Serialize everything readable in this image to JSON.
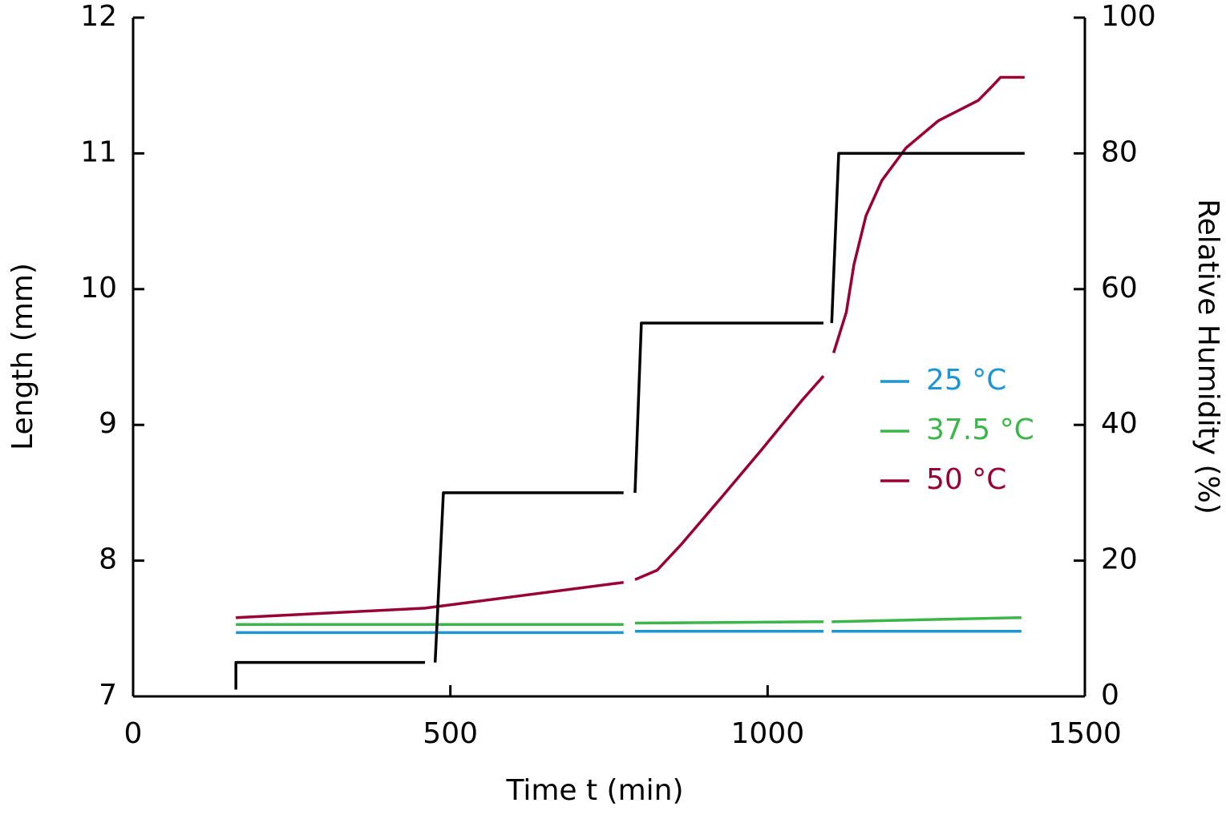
{
  "chart_data": {
    "type": "line",
    "xlabel": "Time t (min)",
    "ylabel": "Length (mm)",
    "y2label": "Relative Humidity (%)",
    "xlim": [
      0,
      1500
    ],
    "xticks": [
      0,
      500,
      1000,
      1500
    ],
    "ylim": [
      7,
      12
    ],
    "yticks": [
      7,
      8,
      9,
      10,
      11,
      12
    ],
    "y2lim": [
      0,
      100
    ],
    "y2ticks": [
      0,
      20,
      40,
      60,
      80,
      100
    ],
    "legend": "right",
    "series": [
      {
        "name": "25 °C",
        "color": "#1f95d2",
        "x": [
          162,
          773,
          null,
          791,
          1088,
          null,
          1101,
          1400
        ],
        "values": [
          7.47,
          7.47,
          null,
          7.48,
          7.48,
          null,
          7.48,
          7.48
        ]
      },
      {
        "name": "37.5 °C",
        "color": "#3cb54a",
        "x": [
          162,
          773,
          null,
          791,
          1088,
          null,
          1101,
          1400
        ],
        "values": [
          7.53,
          7.53,
          null,
          7.54,
          7.55,
          null,
          7.55,
          7.58
        ]
      },
      {
        "name": "50 °C",
        "color": "#990033",
        "x": [
          162,
          460,
          773,
          null,
          791,
          826,
          864,
          928,
          991,
          1054,
          1088,
          null,
          1104,
          1124,
          1136,
          1155,
          1180,
          1218,
          1269,
          1332,
          1353,
          1367,
          1405
        ],
        "values": [
          7.58,
          7.65,
          7.84,
          null,
          7.86,
          7.93,
          8.12,
          8.47,
          8.82,
          9.18,
          9.36,
          null,
          9.53,
          9.83,
          10.18,
          10.54,
          10.8,
          11.04,
          11.24,
          11.39,
          11.49,
          11.56,
          11.56
        ]
      },
      {
        "color": "#000000",
        "axis": "y2",
        "x": [
          162,
          162,
          460,
          null,
          476,
          489,
          773,
          null,
          791,
          801,
          1088,
          null,
          1101,
          1112,
          1405
        ],
        "values": [
          1,
          5,
          5,
          null,
          5,
          30,
          30,
          null,
          30,
          55,
          55,
          null,
          55,
          80,
          80
        ]
      }
    ]
  }
}
